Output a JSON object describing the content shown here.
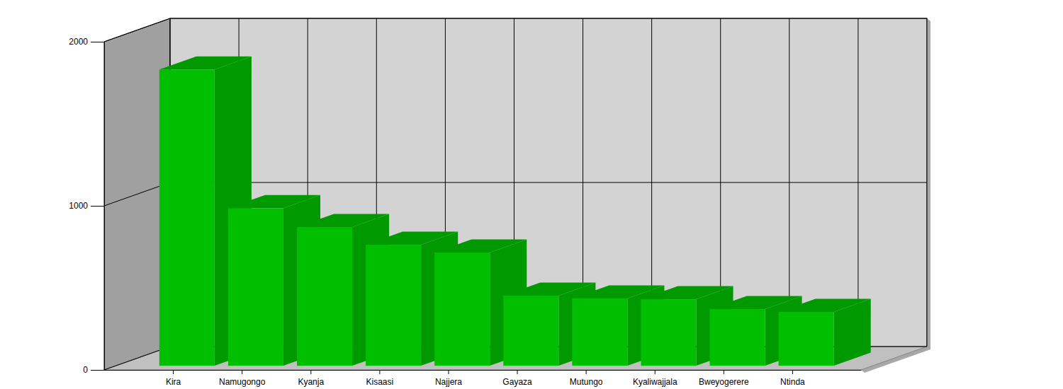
{
  "chart_data": {
    "type": "bar",
    "categories": [
      "Kira",
      "Namugongo",
      "Kyanja",
      "Kisaasi",
      "Najjera",
      "Gayaza",
      "Mutungo",
      "Kyaliwajjala",
      "Bweyogerere",
      "Ntinda"
    ],
    "values": [
      1805,
      960,
      845,
      737,
      690,
      427,
      410,
      405,
      345,
      328
    ],
    "color": "#00bf00",
    "ylim": [
      0,
      2000
    ],
    "yticks": [
      0,
      1000,
      2000
    ],
    "grid": true
  }
}
